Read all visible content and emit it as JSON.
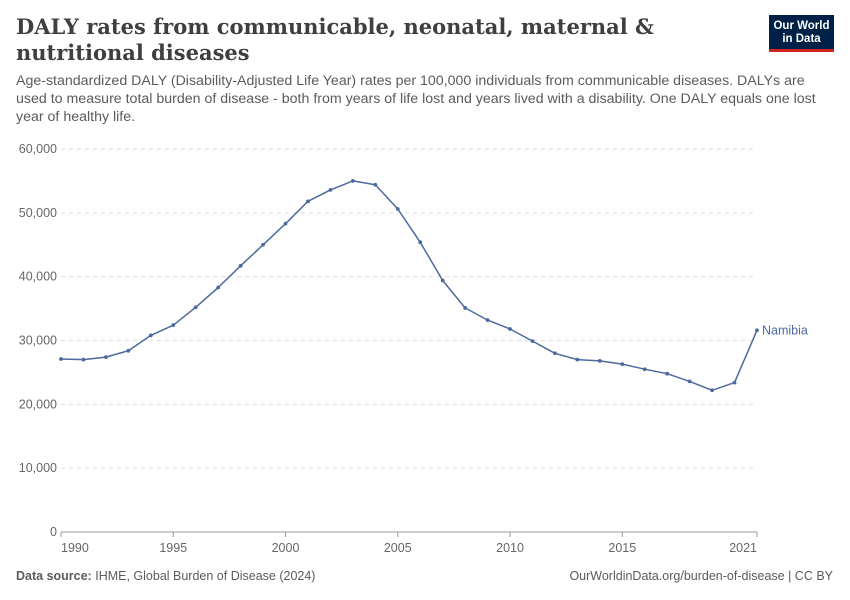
{
  "header": {
    "title": "DALY rates from communicable, neonatal, maternal & nutritional diseases",
    "subtitle": "Age-standardized DALY (Disability-Adjusted Life Year) rates per 100,000 individuals from communicable diseases. DALYs are used to measure total burden of disease - both from years of life lost and years lived with a disability. One DALY equals one lost year of healthy life.",
    "logo_line1": "Our World",
    "logo_line2": "in Data"
  },
  "footer": {
    "source_label": "Data source:",
    "source_text": "IHME, Global Burden of Disease (2024)",
    "right_text": "OurWorldinData.org/burden-of-disease | CC BY"
  },
  "colors": {
    "series": "#4c6a9c",
    "grid": "#dddddd",
    "axis": "#666666",
    "logo_bg": "#002147",
    "logo_accent": "#ce261e"
  },
  "chart_data": {
    "type": "line",
    "title": "DALY rates from communicable, neonatal, maternal & nutritional diseases",
    "xlabel": "",
    "ylabel": "",
    "xlim": [
      1990,
      2021
    ],
    "ylim": [
      0,
      60000
    ],
    "y_ticks": [
      0,
      10000,
      20000,
      30000,
      40000,
      50000,
      60000
    ],
    "y_tick_labels": [
      "0",
      "10,000",
      "20,000",
      "30,000",
      "40,000",
      "50,000",
      "60,000"
    ],
    "x_ticks": [
      1990,
      1995,
      2000,
      2005,
      2010,
      2015,
      2021
    ],
    "x_tick_labels": [
      "1990",
      "1995",
      "2000",
      "2005",
      "2010",
      "2015",
      "2021"
    ],
    "grid": true,
    "legend": "end-of-line label",
    "series": [
      {
        "name": "Namibia",
        "x": [
          1990,
          1991,
          1992,
          1993,
          1994,
          1995,
          1996,
          1997,
          1998,
          1999,
          2000,
          2001,
          2002,
          2003,
          2004,
          2005,
          2006,
          2007,
          2008,
          2009,
          2010,
          2011,
          2012,
          2013,
          2014,
          2015,
          2016,
          2017,
          2018,
          2019,
          2020,
          2021
        ],
        "values": [
          27100,
          27000,
          27400,
          28400,
          30800,
          32400,
          35200,
          38300,
          41700,
          45000,
          48300,
          51800,
          53600,
          55000,
          54400,
          50600,
          45400,
          39400,
          35100,
          33200,
          31800,
          29900,
          28000,
          27000,
          26800,
          26300,
          25500,
          24800,
          23600,
          22200,
          23400,
          31600
        ]
      }
    ]
  }
}
